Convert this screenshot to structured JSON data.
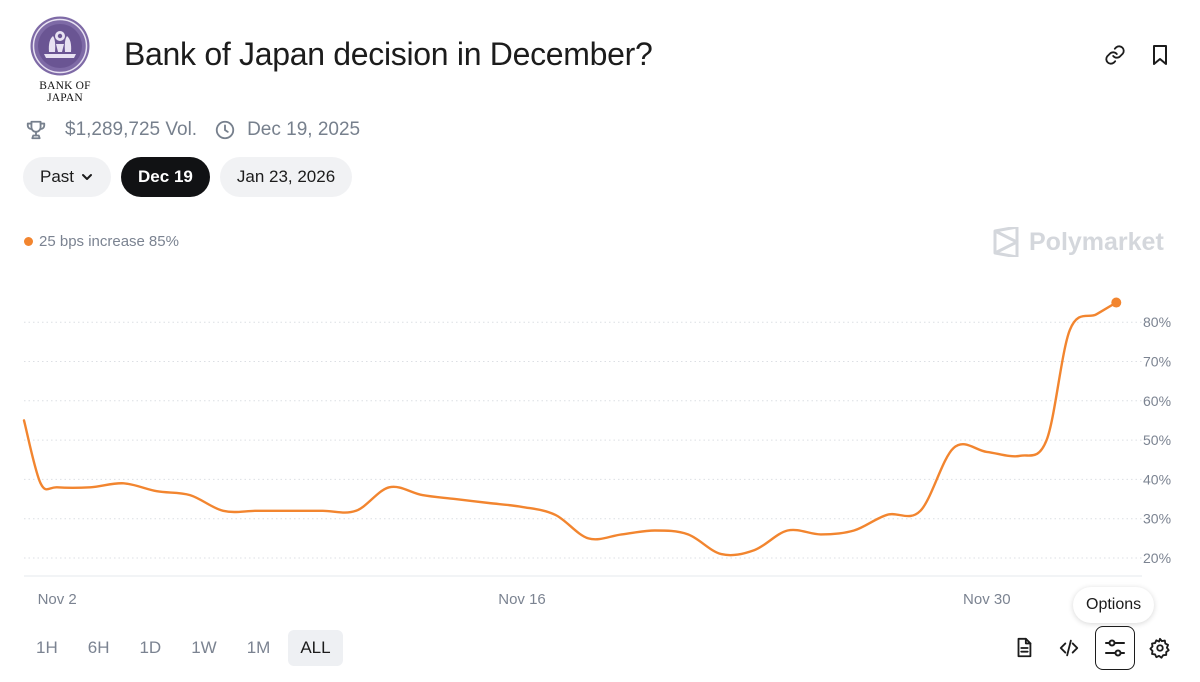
{
  "header": {
    "title": "Bank of Japan decision in December?",
    "logo_caption": "BANK OF JAPAN",
    "volume": "$1,289,725 Vol.",
    "end_date": "Dec 19, 2025"
  },
  "date_tabs": [
    {
      "label": "Past"
    },
    {
      "label": "Dec 19"
    },
    {
      "label": "Jan 23, 2026"
    }
  ],
  "legend": {
    "label": "25 bps increase",
    "value": "85%",
    "color": "#f2852f"
  },
  "watermark": "Polymarket",
  "time_ranges": [
    "1H",
    "6H",
    "1D",
    "1W",
    "1M",
    "ALL"
  ],
  "active_range": "ALL",
  "tooltip": "Options",
  "icons": {
    "link": "link-icon",
    "bookmark": "bookmark-icon",
    "volume": "trophy-icon",
    "date": "clock-icon",
    "tools": [
      "document-icon",
      "code-icon",
      "sliders-icon",
      "gear-icon"
    ]
  },
  "chart_data": {
    "type": "line",
    "series": [
      {
        "name": "25 bps increase",
        "color": "#f2852f",
        "x_days": [
          0,
          0.5,
          1,
          2,
          3,
          4,
          5,
          6,
          7,
          8,
          9,
          10,
          11,
          12,
          13,
          14,
          15,
          16,
          17,
          18,
          19,
          20,
          21,
          22,
          23,
          24,
          25,
          26,
          27,
          28,
          29,
          30,
          30.8,
          31.5,
          32.3,
          32.9
        ],
        "values": [
          55,
          39,
          38,
          38,
          39,
          37,
          36,
          32,
          32,
          32,
          32,
          32,
          38,
          36,
          35,
          34,
          33,
          31,
          25,
          26,
          27,
          26,
          21,
          22,
          27,
          26,
          27,
          31,
          32,
          48,
          47,
          46,
          50,
          78,
          82,
          85
        ]
      }
    ],
    "x_ticks": [
      "Nov 2",
      "Nov 16",
      "Nov 30"
    ],
    "y_ticks": [
      "20%",
      "30%",
      "40%",
      "50%",
      "60%",
      "70%",
      "80%"
    ],
    "ylim": [
      20,
      80
    ],
    "grid": true,
    "legend_position": "top-left"
  }
}
